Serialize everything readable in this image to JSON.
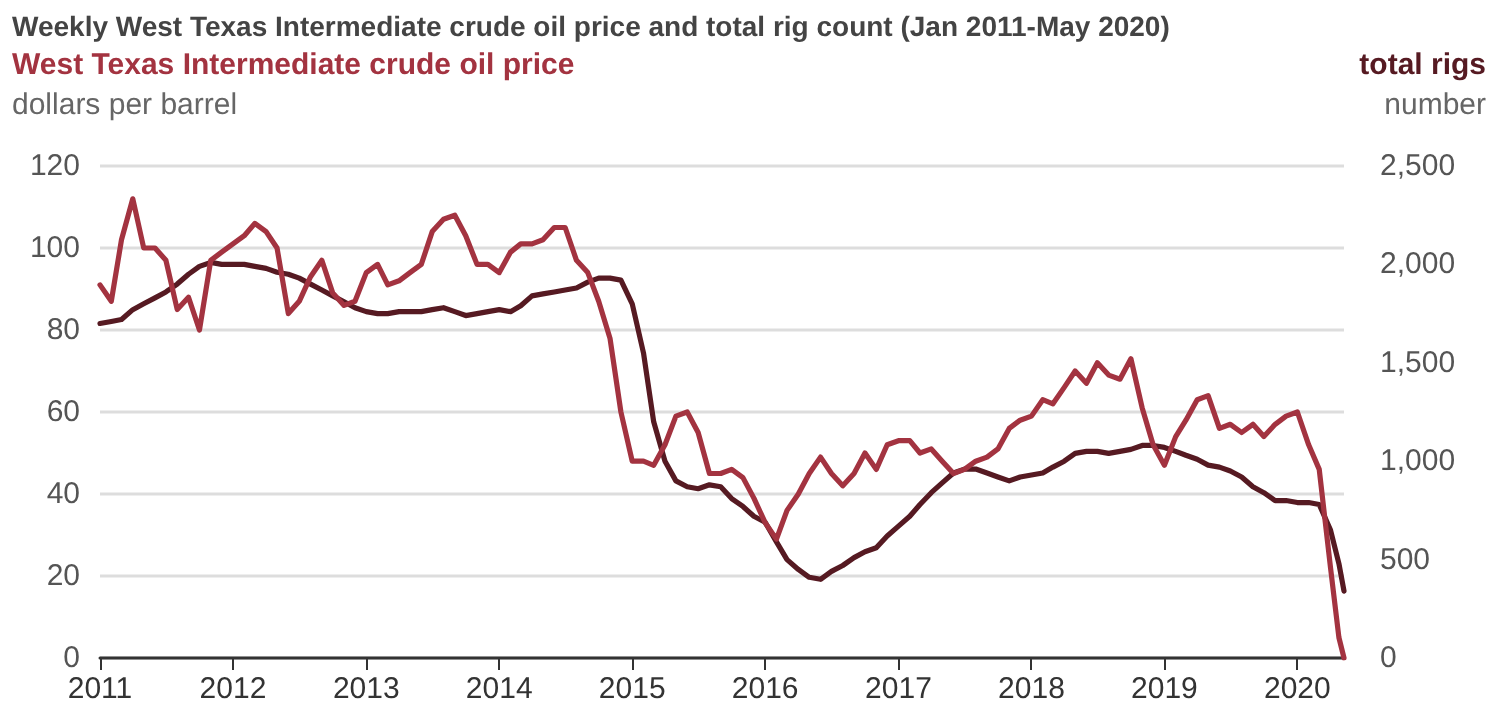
{
  "chart_data": {
    "type": "line",
    "title": "Weekly West Texas Intermediate crude oil price and total rig count (Jan 2011-May 2020)",
    "ylabel": "dollars per barrel",
    "y2label": "number",
    "x": [
      "2011-01",
      "2011-02",
      "2011-03",
      "2011-04",
      "2011-05",
      "2011-06",
      "2011-07",
      "2011-08",
      "2011-09",
      "2011-10",
      "2011-11",
      "2011-12",
      "2012-01",
      "2012-02",
      "2012-03",
      "2012-04",
      "2012-05",
      "2012-06",
      "2012-07",
      "2012-08",
      "2012-09",
      "2012-10",
      "2012-11",
      "2012-12",
      "2013-01",
      "2013-02",
      "2013-03",
      "2013-04",
      "2013-05",
      "2013-06",
      "2013-07",
      "2013-08",
      "2013-09",
      "2013-10",
      "2013-11",
      "2013-12",
      "2014-01",
      "2014-02",
      "2014-03",
      "2014-04",
      "2014-05",
      "2014-06",
      "2014-07",
      "2014-08",
      "2014-09",
      "2014-10",
      "2014-11",
      "2014-12",
      "2015-01",
      "2015-02",
      "2015-03",
      "2015-04",
      "2015-05",
      "2015-06",
      "2015-07",
      "2015-08",
      "2015-09",
      "2015-10",
      "2015-11",
      "2015-12",
      "2016-01",
      "2016-02",
      "2016-03",
      "2016-04",
      "2016-05",
      "2016-06",
      "2016-07",
      "2016-08",
      "2016-09",
      "2016-10",
      "2016-11",
      "2016-12",
      "2017-01",
      "2017-02",
      "2017-03",
      "2017-04",
      "2017-05",
      "2017-06",
      "2017-07",
      "2017-08",
      "2017-09",
      "2017-10",
      "2017-11",
      "2017-12",
      "2018-01",
      "2018-02",
      "2018-03",
      "2018-04",
      "2018-05",
      "2018-06",
      "2018-07",
      "2018-08",
      "2018-09",
      "2018-10",
      "2018-11",
      "2018-12",
      "2019-01",
      "2019-02",
      "2019-03",
      "2019-04",
      "2019-05",
      "2019-06",
      "2019-07",
      "2019-08",
      "2019-09",
      "2019-10",
      "2019-11",
      "2019-12",
      "2020-01",
      "2020-02",
      "2020-03",
      "2020-04",
      "2020-04-24",
      "2020-05-08"
    ],
    "series": [
      {
        "name": "West Texas Intermediate crude oil price",
        "color": "#a33340",
        "values": [
          91,
          87,
          102,
          112,
          100,
          100,
          97,
          85,
          88,
          80,
          97,
          99,
          101,
          103,
          106,
          104,
          100,
          84,
          87,
          93,
          97,
          89,
          86,
          87,
          94,
          96,
          91,
          92,
          94,
          96,
          104,
          107,
          108,
          103,
          96,
          96,
          94,
          99,
          101,
          101,
          102,
          105,
          105,
          97,
          94,
          87,
          78,
          60,
          48,
          48,
          47,
          52,
          59,
          60,
          55,
          45,
          45,
          46,
          44,
          39,
          33,
          29,
          36,
          40,
          45,
          49,
          45,
          42,
          45,
          50,
          46,
          52,
          53,
          53,
          50,
          51,
          48,
          45,
          46,
          48,
          49,
          51,
          56,
          58,
          59,
          63,
          62,
          66,
          70,
          67,
          72,
          69,
          68,
          73,
          61,
          52,
          47,
          54,
          58,
          63,
          64,
          56,
          57,
          55,
          57,
          54,
          57,
          59,
          60,
          52,
          46,
          22,
          5,
          0
        ]
      },
      {
        "name": "total rigs",
        "color": "#561a22",
        "axis": "y2",
        "values": [
          1700,
          1710,
          1720,
          1770,
          1800,
          1830,
          1860,
          1900,
          1950,
          1990,
          2010,
          2000,
          2000,
          2000,
          1990,
          1980,
          1960,
          1950,
          1930,
          1900,
          1870,
          1840,
          1810,
          1780,
          1760,
          1750,
          1750,
          1760,
          1760,
          1760,
          1770,
          1780,
          1760,
          1740,
          1750,
          1760,
          1770,
          1760,
          1790,
          1840,
          1850,
          1860,
          1870,
          1880,
          1910,
          1930,
          1930,
          1920,
          1800,
          1550,
          1200,
          1000,
          900,
          870,
          860,
          880,
          870,
          810,
          770,
          720,
          690,
          590,
          500,
          450,
          410,
          400,
          440,
          470,
          510,
          540,
          560,
          620,
          670,
          720,
          780,
          840,
          890,
          940,
          960,
          960,
          940,
          920,
          900,
          920,
          930,
          940,
          970,
          1000,
          1040,
          1050,
          1050,
          1040,
          1050,
          1060,
          1080,
          1080,
          1070,
          1050,
          1030,
          1010,
          980,
          970,
          950,
          920,
          870,
          840,
          800,
          800,
          790,
          790,
          780,
          650,
          480,
          340
        ]
      }
    ],
    "xlim": [
      "2011-01",
      "2020-05-08"
    ],
    "xticks": [
      "2011",
      "2012",
      "2013",
      "2014",
      "2015",
      "2016",
      "2017",
      "2018",
      "2019",
      "2020"
    ],
    "ylim": [
      0,
      120
    ],
    "yticks": [
      0,
      20,
      40,
      60,
      80,
      100,
      120
    ],
    "y2lim": [
      0,
      2500
    ],
    "y2ticks": [
      0,
      {
        "value": 500,
        "label": "500"
      },
      {
        "value": 1000,
        "label": "1,000"
      },
      {
        "value": 1500,
        "label": "1,500"
      },
      {
        "value": 2000,
        "label": "2,000"
      },
      {
        "value": 2500,
        "label": "2,500"
      }
    ],
    "grid": "y",
    "marker": "none",
    "line_style": "solid"
  }
}
